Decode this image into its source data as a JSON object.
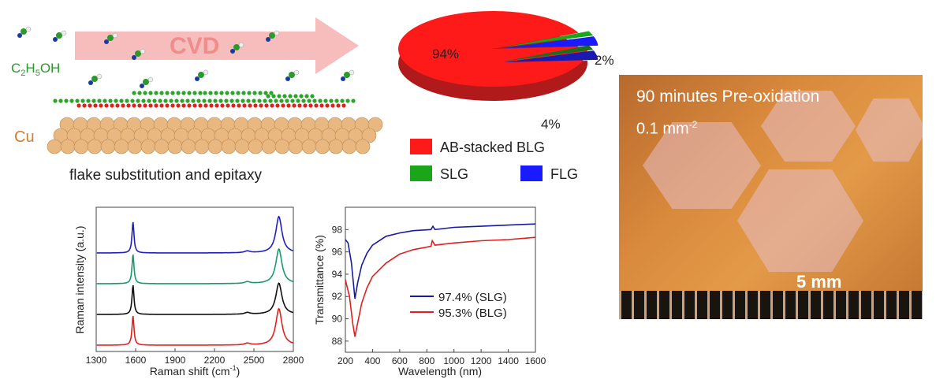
{
  "schematic": {
    "arrow_label": "CVD",
    "precursor_label": "C2H5OH",
    "precursor_main": "C",
    "precursor_sub1": "2",
    "precursor_mid": "H",
    "precursor_sub2": "5",
    "precursor_end": "OH",
    "substrate_label": "Cu",
    "caption": "flake substitution and epitaxy"
  },
  "photo": {
    "title": "90 minutes Pre-oxidation",
    "density": "0.1 mm",
    "density_exp": "-2",
    "scale_bar": "5 mm"
  },
  "chart_data": [
    {
      "type": "pie",
      "labels": [
        "AB-stacked BLG",
        "SLG",
        "FLG"
      ],
      "values": [
        94,
        2,
        4
      ],
      "value_labels": [
        "94%",
        "2%",
        "4%"
      ],
      "colors": [
        "#ff1a1a",
        "#1aa51a",
        "#1a1aff"
      ],
      "legend": "bottom",
      "style": "3d-exploded"
    },
    {
      "type": "line",
      "xlabel": "Raman shift (cm",
      "xlabel_exp": "-1",
      "xlabel_end": ")",
      "ylabel": "Raman intensity (a.u.)",
      "xlim": [
        1300,
        2800
      ],
      "xticks": [
        "1300",
        "1600",
        "1900",
        "2200",
        "2500",
        "2800"
      ],
      "offset_stacked": true,
      "series": [
        {
          "color": "#2020c0",
          "peaks": [
            [
              1580,
              0.9
            ],
            [
              2450,
              0.05
            ],
            [
              2690,
              1.05
            ]
          ]
        },
        {
          "color": "#1a9a6a",
          "peaks": [
            [
              1580,
              0.85
            ],
            [
              2450,
              0.05
            ],
            [
              2690,
              1.0
            ]
          ]
        },
        {
          "color": "#111111",
          "peaks": [
            [
              1580,
              0.85
            ],
            [
              2450,
              0.05
            ],
            [
              2690,
              0.9
            ]
          ]
        },
        {
          "color": "#e02020",
          "peaks": [
            [
              1580,
              0.85
            ],
            [
              2450,
              0.05
            ],
            [
              2690,
              1.05
            ]
          ]
        }
      ]
    },
    {
      "type": "line",
      "xlabel": "Wavelength (nm)",
      "ylabel": "Transmittance (%)",
      "xlim": [
        200,
        1600
      ],
      "ylim": [
        87,
        100
      ],
      "xticks": [
        "200",
        "400",
        "600",
        "800",
        "1000",
        "1200",
        "1400",
        "1600"
      ],
      "yticks": [
        "88",
        "90",
        "92",
        "94",
        "96",
        "98"
      ],
      "legend": "center-right",
      "series": [
        {
          "name": "97.4% (SLG)",
          "color": "#1a1aa0",
          "points": [
            [
              200,
              97.1
            ],
            [
              220,
              96.8
            ],
            [
              245,
              95
            ],
            [
              270,
              91.8
            ],
            [
              290,
              93.2
            ],
            [
              320,
              94.8
            ],
            [
              360,
              95.9
            ],
            [
              400,
              96.6
            ],
            [
              500,
              97.4
            ],
            [
              600,
              97.7
            ],
            [
              700,
              97.9
            ],
            [
              830,
              98.0
            ],
            [
              845,
              98.3
            ],
            [
              860,
              98.0
            ],
            [
              1000,
              98.2
            ],
            [
              1200,
              98.3
            ],
            [
              1400,
              98.4
            ],
            [
              1600,
              98.5
            ]
          ]
        },
        {
          "name": "95.3% (BLG)",
          "color": "#e02020",
          "points": [
            [
              200,
              93.5
            ],
            [
              230,
              92
            ],
            [
              255,
              89.5
            ],
            [
              270,
              88.4
            ],
            [
              290,
              89.6
            ],
            [
              320,
              91.4
            ],
            [
              360,
              92.8
            ],
            [
              400,
              93.8
            ],
            [
              500,
              95.0
            ],
            [
              600,
              95.8
            ],
            [
              700,
              96.2
            ],
            [
              830,
              96.5
            ],
            [
              840,
              97.0
            ],
            [
              860,
              96.6
            ],
            [
              1000,
              96.8
            ],
            [
              1200,
              97.0
            ],
            [
              1400,
              97.1
            ],
            [
              1600,
              97.3
            ]
          ]
        }
      ]
    }
  ]
}
